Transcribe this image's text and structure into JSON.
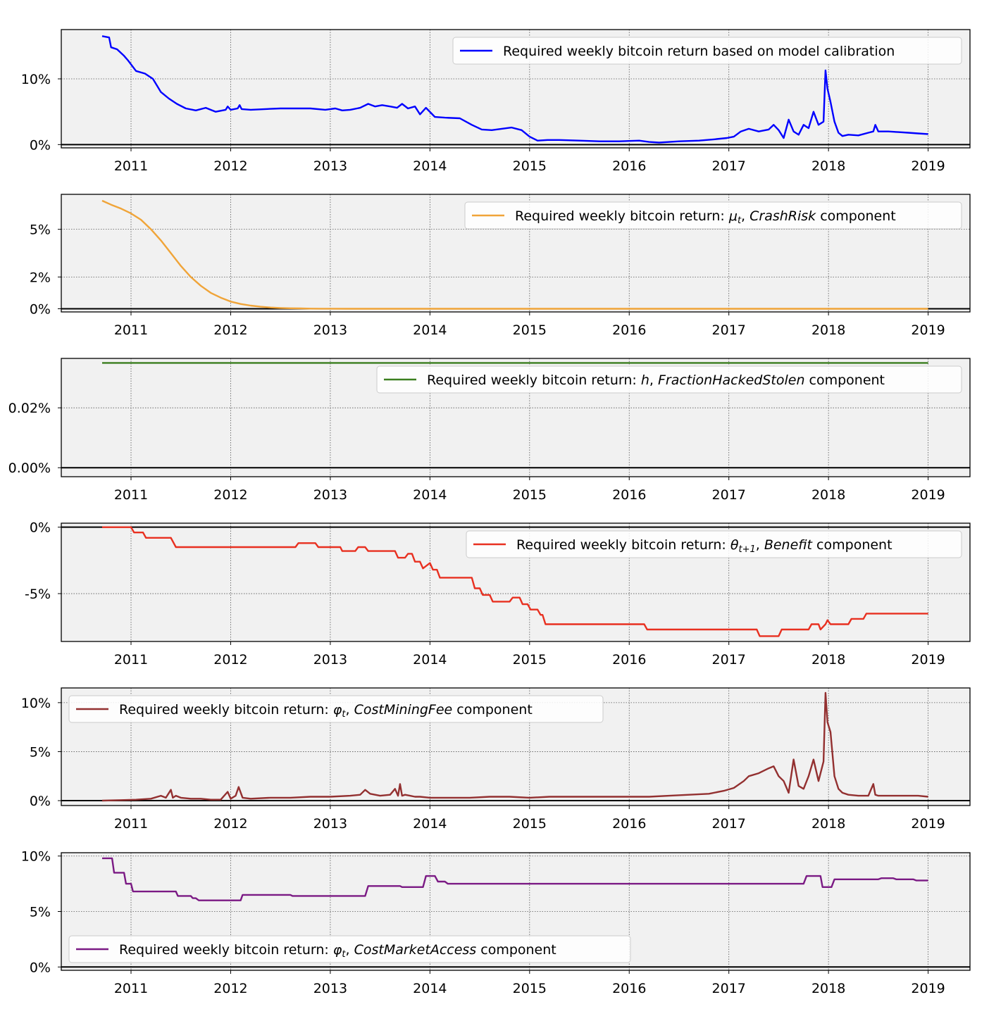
{
  "x_ticks": [
    "2011",
    "2012",
    "2013",
    "2014",
    "2015",
    "2016",
    "2017",
    "2018",
    "2019"
  ],
  "chart_data": [
    {
      "type": "line",
      "series": [
        {
          "name": "Required weekly bitcoin return based on model calibration",
          "color": "#0000ff",
          "x": [
            2010.71,
            2010.78,
            2010.8,
            2010.86,
            2010.93,
            2010.97,
            2011.05,
            2011.14,
            2011.22,
            2011.3,
            2011.38,
            2011.46,
            2011.55,
            2011.65,
            2011.75,
            2011.85,
            2011.95,
            2011.97,
            2012.0,
            2012.07,
            2012.09,
            2012.11,
            2012.2,
            2012.35,
            2012.5,
            2012.65,
            2012.8,
            2012.95,
            2013.05,
            2013.12,
            2013.2,
            2013.3,
            2013.38,
            2013.45,
            2013.52,
            2013.6,
            2013.67,
            2013.72,
            2013.78,
            2013.85,
            2013.9,
            2013.96,
            2014.05,
            2014.15,
            2014.3,
            2014.42,
            2014.52,
            2014.62,
            2014.72,
            2014.82,
            2014.92,
            2015.0,
            2015.08,
            2015.18,
            2015.3,
            2015.5,
            2015.7,
            2015.9,
            2016.1,
            2016.2,
            2016.3,
            2016.5,
            2016.7,
            2016.85,
            2016.98,
            2017.05,
            2017.12,
            2017.2,
            2017.3,
            2017.4,
            2017.45,
            2017.5,
            2017.55,
            2017.6,
            2017.65,
            2017.7,
            2017.75,
            2017.8,
            2017.85,
            2017.9,
            2017.95,
            2017.97,
            2017.99,
            2018.02,
            2018.06,
            2018.1,
            2018.14,
            2018.2,
            2018.3,
            2018.4,
            2018.45,
            2018.47,
            2018.5,
            2018.6,
            2018.7,
            2018.8,
            2018.9,
            2019.0
          ],
          "y": [
            16.5,
            16.3,
            14.8,
            14.5,
            13.5,
            12.8,
            11.2,
            10.8,
            10.0,
            8.0,
            7.0,
            6.2,
            5.5,
            5.2,
            5.6,
            5.0,
            5.3,
            5.8,
            5.3,
            5.5,
            6.0,
            5.4,
            5.3,
            5.4,
            5.5,
            5.5,
            5.5,
            5.3,
            5.5,
            5.2,
            5.3,
            5.6,
            6.2,
            5.8,
            6.0,
            5.8,
            5.6,
            6.2,
            5.5,
            5.8,
            4.6,
            5.6,
            4.2,
            4.1,
            4.0,
            3.0,
            2.3,
            2.2,
            2.4,
            2.6,
            2.2,
            1.2,
            0.6,
            0.7,
            0.7,
            0.6,
            0.5,
            0.5,
            0.6,
            0.4,
            0.3,
            0.5,
            0.6,
            0.8,
            1.0,
            1.2,
            2.0,
            2.4,
            2.0,
            2.3,
            3.0,
            2.2,
            1.0,
            3.8,
            2.0,
            1.5,
            3.0,
            2.5,
            5.0,
            3.0,
            3.5,
            11.3,
            8.5,
            6.5,
            3.5,
            1.8,
            1.3,
            1.5,
            1.4,
            1.8,
            2.0,
            3.0,
            2.0,
            2.0,
            1.9,
            1.8,
            1.7,
            1.6
          ]
        }
      ],
      "y_ticks": [
        "10%",
        "0%"
      ],
      "ylim": [
        -0.5,
        17.5
      ],
      "legend": "top-right"
    },
    {
      "type": "line",
      "series": [
        {
          "name": "Required weekly bitcoin return: μt, CrashRisk component",
          "color": "#f0a438",
          "x": [
            2010.71,
            2010.8,
            2010.9,
            2011.0,
            2011.1,
            2011.2,
            2011.3,
            2011.4,
            2011.5,
            2011.6,
            2011.7,
            2011.8,
            2011.9,
            2012.0,
            2012.1,
            2012.2,
            2012.3,
            2012.4,
            2012.5,
            2012.6,
            2012.7,
            2012.8,
            2012.9,
            2013.0,
            2013.2,
            2013.5,
            2014.0,
            2015.0,
            2016.0,
            2017.0,
            2018.0,
            2019.0
          ],
          "y": [
            6.8,
            6.55,
            6.3,
            6.0,
            5.6,
            5.0,
            4.3,
            3.5,
            2.7,
            2.0,
            1.45,
            1.0,
            0.7,
            0.45,
            0.3,
            0.2,
            0.13,
            0.08,
            0.05,
            0.03,
            0.02,
            0.01,
            0.005,
            0.003,
            0.001,
            0.0,
            0.0,
            0.0,
            0.0,
            0.0,
            0.0,
            0.0
          ]
        }
      ],
      "y_ticks": [
        "5%",
        "2%",
        "0%"
      ],
      "ylim": [
        -0.2,
        7.2
      ],
      "legend": "top-right"
    },
    {
      "type": "line",
      "series": [
        {
          "name": "Required weekly bitcoin return: h, FractionHackedStolen component",
          "color": "#3b7e1f",
          "x": [
            2010.71,
            2019.0
          ],
          "y": [
            0.035,
            0.035
          ]
        }
      ],
      "y_ticks": [
        "0.02%",
        "0.00%"
      ],
      "y_tick_values": [
        0.02,
        0.0
      ],
      "ylim": [
        -0.003,
        0.0365
      ],
      "legend": "top-right"
    },
    {
      "type": "line",
      "series": [
        {
          "name": "Required weekly bitcoin return: θt+1, Benefit component",
          "color": "#e83020",
          "x": [
            2010.71,
            2011.0,
            2011.03,
            2011.12,
            2011.15,
            2011.4,
            2011.45,
            2012.65,
            2012.68,
            2012.85,
            2012.88,
            2013.1,
            2013.12,
            2013.25,
            2013.28,
            2013.35,
            2013.38,
            2013.45,
            2013.48,
            2013.65,
            2013.68,
            2013.75,
            2013.78,
            2013.82,
            2013.85,
            2013.9,
            2013.93,
            2014.0,
            2014.03,
            2014.07,
            2014.1,
            2014.42,
            2014.45,
            2014.5,
            2014.53,
            2014.6,
            2014.63,
            2014.8,
            2014.83,
            2014.9,
            2014.93,
            2014.98,
            2015.01,
            2015.08,
            2015.11,
            2015.13,
            2015.16,
            2016.15,
            2016.18,
            2017.28,
            2017.31,
            2017.5,
            2017.53,
            2017.8,
            2017.83,
            2017.9,
            2017.92,
            2017.97,
            2017.99,
            2018.02,
            2018.05,
            2018.2,
            2018.23,
            2018.35,
            2018.38,
            2019.0
          ],
          "y": [
            0.0,
            0.0,
            -0.4,
            -0.4,
            -0.8,
            -0.8,
            -1.5,
            -1.5,
            -1.2,
            -1.2,
            -1.5,
            -1.5,
            -1.8,
            -1.8,
            -1.5,
            -1.5,
            -1.8,
            -1.8,
            -1.8,
            -1.8,
            -2.3,
            -2.3,
            -2.0,
            -2.0,
            -2.6,
            -2.6,
            -3.1,
            -2.7,
            -3.2,
            -3.2,
            -3.8,
            -3.8,
            -4.6,
            -4.6,
            -5.1,
            -5.1,
            -5.6,
            -5.6,
            -5.3,
            -5.3,
            -5.8,
            -5.8,
            -6.2,
            -6.2,
            -6.6,
            -6.6,
            -7.3,
            -7.3,
            -7.7,
            -7.7,
            -8.2,
            -8.2,
            -7.7,
            -7.7,
            -7.3,
            -7.3,
            -7.7,
            -7.3,
            -7.0,
            -7.3,
            -7.3,
            -7.3,
            -6.9,
            -6.9,
            -6.5,
            -6.5
          ]
        }
      ],
      "y_ticks": [
        "0%",
        "-5%"
      ],
      "y_tick_values": [
        0,
        -5
      ],
      "ylim": [
        -8.6,
        0.3
      ],
      "legend": "top-right"
    },
    {
      "type": "line",
      "series": [
        {
          "name": "Required weekly bitcoin return: φt, CostMiningFee component",
          "color": "#933030",
          "x": [
            2010.71,
            2010.9,
            2011.05,
            2011.2,
            2011.3,
            2011.35,
            2011.4,
            2011.42,
            2011.45,
            2011.5,
            2011.6,
            2011.7,
            2011.8,
            2011.9,
            2011.97,
            2012.0,
            2012.05,
            2012.08,
            2012.12,
            2012.2,
            2012.4,
            2012.6,
            2012.8,
            2013.0,
            2013.2,
            2013.3,
            2013.35,
            2013.4,
            2013.5,
            2013.6,
            2013.65,
            2013.68,
            2013.7,
            2013.72,
            2013.75,
            2013.8,
            2013.85,
            2013.9,
            2014.0,
            2014.2,
            2014.4,
            2014.6,
            2014.8,
            2015.0,
            2015.2,
            2015.4,
            2015.6,
            2015.8,
            2016.0,
            2016.2,
            2016.4,
            2016.6,
            2016.8,
            2016.95,
            2017.05,
            2017.15,
            2017.2,
            2017.3,
            2017.4,
            2017.45,
            2017.5,
            2017.55,
            2017.6,
            2017.65,
            2017.7,
            2017.75,
            2017.8,
            2017.85,
            2017.9,
            2017.95,
            2017.97,
            2017.99,
            2018.02,
            2018.06,
            2018.1,
            2018.14,
            2018.2,
            2018.3,
            2018.4,
            2018.45,
            2018.47,
            2018.5,
            2018.6,
            2018.7,
            2018.8,
            2018.9,
            2019.0
          ],
          "y": [
            0.0,
            0.05,
            0.1,
            0.2,
            0.5,
            0.3,
            1.1,
            0.3,
            0.5,
            0.3,
            0.2,
            0.2,
            0.1,
            0.1,
            0.9,
            0.2,
            0.5,
            1.4,
            0.3,
            0.2,
            0.3,
            0.3,
            0.4,
            0.4,
            0.5,
            0.6,
            1.1,
            0.7,
            0.5,
            0.6,
            1.2,
            0.5,
            1.7,
            0.5,
            0.6,
            0.5,
            0.4,
            0.4,
            0.3,
            0.3,
            0.3,
            0.4,
            0.4,
            0.3,
            0.4,
            0.4,
            0.4,
            0.4,
            0.4,
            0.4,
            0.5,
            0.6,
            0.7,
            1.0,
            1.3,
            2.0,
            2.5,
            2.8,
            3.3,
            3.5,
            2.5,
            2.0,
            0.8,
            4.2,
            1.5,
            1.2,
            2.5,
            4.2,
            2.0,
            4.0,
            11.0,
            8.0,
            7.0,
            2.5,
            1.2,
            0.8,
            0.6,
            0.5,
            0.5,
            1.7,
            0.6,
            0.5,
            0.5,
            0.5,
            0.5,
            0.5,
            0.4
          ]
        }
      ],
      "y_ticks": [
        "10%",
        "5%",
        "0%"
      ],
      "ylim": [
        -0.5,
        11.5
      ],
      "legend": "top-left"
    },
    {
      "type": "line",
      "series": [
        {
          "name": "Required weekly bitcoin return: φt, CostMarketAccess component",
          "color": "#7b1a84",
          "x": [
            2010.71,
            2010.81,
            2010.83,
            2010.93,
            2010.95,
            2011.0,
            2011.02,
            2011.25,
            2011.27,
            2011.45,
            2011.47,
            2011.6,
            2011.62,
            2011.65,
            2011.68,
            2011.72,
            2011.75,
            2012.1,
            2012.12,
            2012.6,
            2012.62,
            2013.22,
            2013.25,
            2013.35,
            2013.38,
            2013.7,
            2013.72,
            2013.85,
            2013.87,
            2013.93,
            2013.96,
            2014.05,
            2014.08,
            2014.15,
            2014.18,
            2015.5,
            2015.53,
            2017.75,
            2017.78,
            2017.92,
            2017.94,
            2018.03,
            2018.06,
            2018.4,
            2018.43,
            2018.5,
            2018.53,
            2018.65,
            2018.68,
            2018.85,
            2018.88,
            2019.0
          ],
          "y": [
            9.8,
            9.8,
            8.5,
            8.5,
            7.5,
            7.5,
            6.8,
            6.8,
            6.8,
            6.8,
            6.4,
            6.4,
            6.2,
            6.2,
            6.0,
            6.0,
            6.0,
            6.0,
            6.5,
            6.5,
            6.4,
            6.4,
            6.4,
            6.4,
            7.3,
            7.3,
            7.2,
            7.2,
            7.2,
            7.2,
            8.2,
            8.2,
            7.7,
            7.7,
            7.5,
            7.5,
            7.5,
            7.5,
            8.2,
            8.2,
            7.2,
            7.2,
            7.9,
            7.9,
            7.9,
            7.9,
            8.0,
            8.0,
            7.9,
            7.9,
            7.8,
            7.8
          ]
        }
      ],
      "y_ticks": [
        "10%",
        "5%",
        "0%"
      ],
      "ylim": [
        -0.3,
        10.3
      ],
      "legend": "bottom-left"
    }
  ],
  "legend_parts": [
    {
      "pre": "Required weekly bitcoin return based on model calibration",
      "sym": "",
      "sub": "",
      "ital": "",
      "post": ""
    },
    {
      "pre": "Required weekly bitcoin return: ",
      "sym": "μ",
      "sub": "t",
      "ital": "CrashRisk",
      "post": " component"
    },
    {
      "pre": "Required weekly bitcoin return: ",
      "sym": "h",
      "sub": "",
      "ital": "FractionHackedStolen",
      "post": " component"
    },
    {
      "pre": "Required weekly bitcoin return: ",
      "sym": "θ",
      "sub": "t+1",
      "ital": "Benefit",
      "post": " component"
    },
    {
      "pre": "Required weekly bitcoin return: ",
      "sym": "φ",
      "sub": "t",
      "ital": "CostMiningFee",
      "post": " component"
    },
    {
      "pre": "Required weekly bitcoin return: ",
      "sym": "φ",
      "sub": "t",
      "ital": "CostMarketAccess",
      "post": " component"
    }
  ]
}
